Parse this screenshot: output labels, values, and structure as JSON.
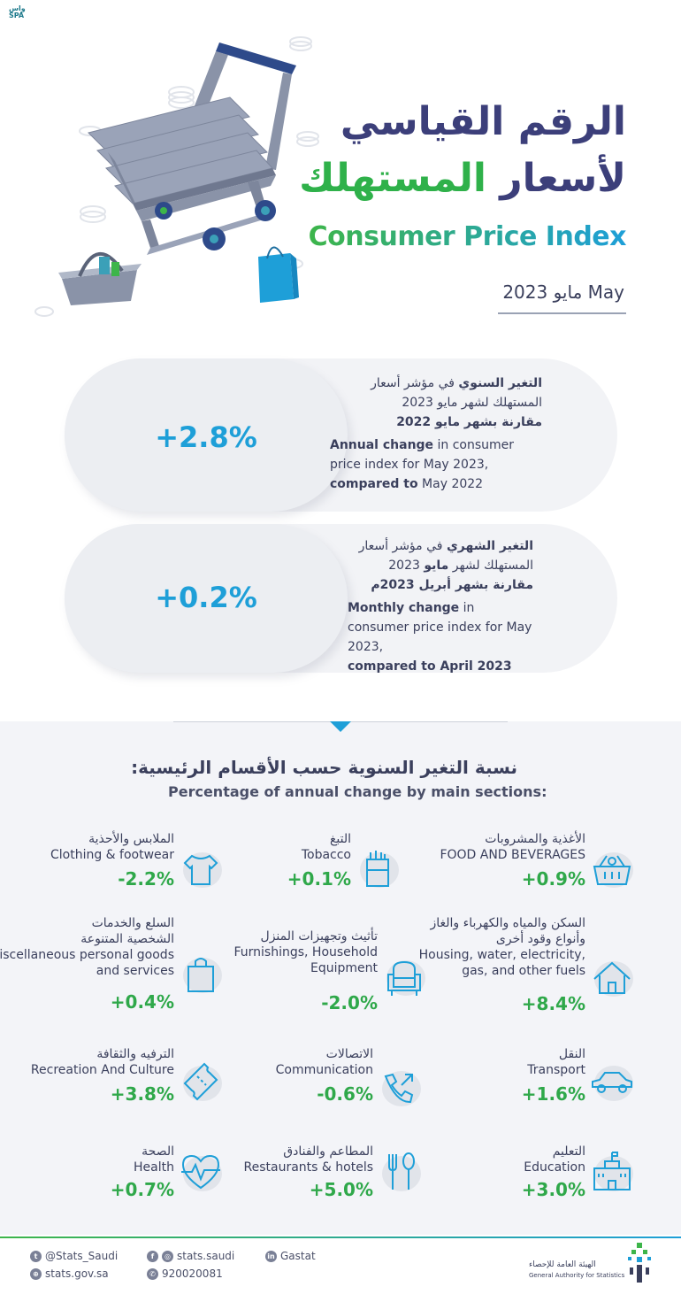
{
  "header": {
    "spa_logo_top": "واس",
    "spa_logo_bottom": "SPA",
    "title_ar_line1": "الرقم القياسي",
    "title_ar_line2_a": "لأسعار ",
    "title_ar_line2_b": "المستهلك",
    "title_en": "Consumer Price Index",
    "date": "مايو 2023  May"
  },
  "cards": [
    {
      "value": "+2.8%",
      "ar_bold_1": "التغير السنوي",
      "ar_1": " في مؤشر أسعار المستهلك لشهر مايو 2023",
      "ar_bold_2": "مقارنة بشهر مايو 2022",
      "en_bold_1": "Annual change",
      "en_1": " in consumer price index for May 2023,",
      "en_bold_2": "compared to",
      "en_2": " May 2022"
    },
    {
      "value": "+0.2%",
      "ar_bold_1": "التغير الشهري",
      "ar_1": " في مؤشر أسعار المستهلك لشهر ",
      "ar_bold_m": "مايو",
      "ar_2": " 2023 ",
      "ar_bold_2": "مقارنة بشهر أبريل 2023م",
      "en_bold_1": "Monthly change",
      "en_1": " in consumer price index for May 2023,",
      "en_bold_2": "compared to April 2023"
    }
  ],
  "section": {
    "title_ar": "نسبة التغير السنوية حسب الأقسام الرئيسية:",
    "title_en": "Percentage of annual change by main sections:"
  },
  "items": [
    {
      "ar": "الأغذية والمشروبات",
      "en": "FOOD AND BEVERAGES",
      "pct": "+0.9%",
      "icon": "food-basket-icon",
      "progress": 0.9
    },
    {
      "ar": "التبغ",
      "en": "Tobacco",
      "pct": "+0.1%",
      "icon": "cigarette-pack-icon",
      "progress": 0.1
    },
    {
      "ar": "الملابس والأحذية",
      "en": "Clothing & footwear",
      "pct": "-2.2%",
      "icon": "tshirt-icon",
      "progress": -2.2
    },
    {
      "ar": "السكن والمياه والكهرباء والغاز وأنواع وقود أخرى",
      "en": "Housing, water, electricity, gas, and other fuels",
      "pct": "+8.4%",
      "icon": "house-icon",
      "progress": 8.4
    },
    {
      "ar": "تأثيث وتجهيزات المنزل",
      "en": "Furnishings, Household Equipment",
      "pct": "-2.0%",
      "icon": "armchair-icon",
      "progress": -2.0
    },
    {
      "ar": "السلع والخدمات الشخصية المتنوعة",
      "en": "Miscellaneous personal goods and services",
      "pct": "+0.4%",
      "icon": "shopping-bag-icon",
      "progress": 0.4
    },
    {
      "ar": "النقل",
      "en": "Transport",
      "pct": "+1.6%",
      "icon": "car-icon",
      "progress": 1.6
    },
    {
      "ar": "الاتصالات",
      "en": "Communication",
      "pct": "-0.6%",
      "icon": "phone-icon",
      "progress": -0.6
    },
    {
      "ar": "الترفيه والثقافة",
      "en": "Recreation And Culture",
      "pct": "+3.8%",
      "icon": "ticket-icon",
      "progress": 3.8
    },
    {
      "ar": "التعليم",
      "en": "Education",
      "pct": "+3.0%",
      "icon": "school-building-icon",
      "progress": 3.0
    },
    {
      "ar": "المطاعم والفنادق",
      "en": "Restaurants & hotels",
      "pct": "+5.0%",
      "icon": "fork-spoon-icon",
      "progress": 5.0
    },
    {
      "ar": "الصحة",
      "en": "Health",
      "pct": "+0.7%",
      "icon": "heart-pulse-icon",
      "progress": 0.7
    }
  ],
  "footer": {
    "twitter": "@Stats_Saudi",
    "facebook_instagram": "stats.saudi",
    "linkedin": "Gastat",
    "website": "stats.gov.sa",
    "phone": "920020081",
    "org_ar": "الهيئة العامة للإحصاء",
    "org_en": "General Authority for Statistics"
  }
}
